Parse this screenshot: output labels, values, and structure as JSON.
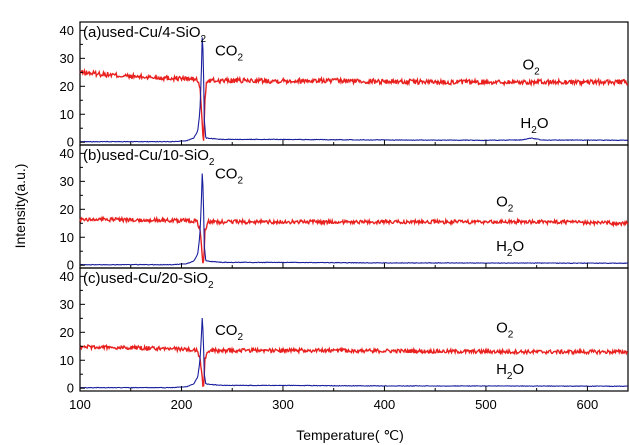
{
  "chart_data": [
    {
      "type": "line",
      "panel_label": {
        "text": "(a)used-Cu/4-SiO",
        "sub": "2"
      },
      "species_labels": [
        {
          "text": "CO",
          "sub": "2",
          "x": 233,
          "y": 31
        },
        {
          "text": "O",
          "sub": "2",
          "x": 536,
          "y": 26
        },
        {
          "text": "H",
          "sub": "2",
          "tail": "O",
          "x": 534,
          "y": 5
        }
      ],
      "xlim": [
        100,
        640
      ],
      "ylim": [
        -1,
        43
      ],
      "yticks": [
        0,
        10,
        20,
        30,
        40
      ],
      "series": [
        {
          "color": "#e8211f",
          "noise": 0.9,
          "points": [
            [
              100,
              25
            ],
            [
              150,
              23.5
            ],
            [
              200,
              22.8
            ],
            [
              215,
              22.5
            ],
            [
              218,
              20
            ],
            [
              220,
              10
            ],
            [
              221,
              2
            ],
            [
              222,
              1
            ],
            [
              223,
              15
            ],
            [
              225,
              22
            ],
            [
              260,
              22
            ],
            [
              350,
              22
            ],
            [
              450,
              21.5
            ],
            [
              550,
              21.5
            ],
            [
              640,
              21.5
            ]
          ]
        },
        {
          "color": "#1a1f9e",
          "noise": 0.1,
          "points": [
            [
              100,
              0.2
            ],
            [
              190,
              0.2
            ],
            [
              205,
              0.5
            ],
            [
              212,
              1.5
            ],
            [
              216,
              4
            ],
            [
              218,
              10
            ],
            [
              219.5,
              24
            ],
            [
              220.5,
              39
            ],
            [
              221.5,
              30
            ],
            [
              222.5,
              8
            ],
            [
              224,
              1.5
            ],
            [
              240,
              1
            ],
            [
              300,
              1
            ],
            [
              400,
              0.8
            ],
            [
              500,
              0.7
            ],
            [
              535,
              0.8
            ],
            [
              545,
              1.5
            ],
            [
              555,
              0.8
            ],
            [
              640,
              0.7
            ]
          ]
        }
      ]
    },
    {
      "type": "line",
      "panel_label": {
        "text": "(b)used-Cu/10-SiO",
        "sub": "2"
      },
      "species_labels": [
        {
          "text": "CO",
          "sub": "2",
          "x": 233,
          "y": 31
        },
        {
          "text": "O",
          "sub": "2",
          "x": 510,
          "y": 21
        },
        {
          "text": "H",
          "sub": "2",
          "tail": "O",
          "x": 510,
          "y": 5
        }
      ],
      "xlim": [
        100,
        640
      ],
      "ylim": [
        -1,
        43
      ],
      "yticks": [
        0,
        10,
        20,
        30,
        40
      ],
      "series": [
        {
          "color": "#e8211f",
          "noise": 0.7,
          "points": [
            [
              100,
              16.5
            ],
            [
              150,
              16.2
            ],
            [
              200,
              16
            ],
            [
              215,
              15.8
            ],
            [
              218,
              13
            ],
            [
              220,
              6
            ],
            [
              221,
              1
            ],
            [
              222,
              1
            ],
            [
              223,
              12
            ],
            [
              226,
              15.5
            ],
            [
              260,
              15.5
            ],
            [
              350,
              15.5
            ],
            [
              450,
              15.5
            ],
            [
              550,
              15.5
            ],
            [
              640,
              15
            ]
          ]
        },
        {
          "color": "#1a1f9e",
          "noise": 0.1,
          "points": [
            [
              100,
              0.2
            ],
            [
              190,
              0.2
            ],
            [
              205,
              0.5
            ],
            [
              212,
              1.5
            ],
            [
              216,
              4
            ],
            [
              218,
              10
            ],
            [
              219.5,
              22
            ],
            [
              220.5,
              34
            ],
            [
              221.5,
              25
            ],
            [
              222.5,
              7
            ],
            [
              224,
              1.5
            ],
            [
              240,
              1
            ],
            [
              300,
              1
            ],
            [
              400,
              0.8
            ],
            [
              500,
              0.8
            ],
            [
              640,
              0.7
            ]
          ]
        }
      ]
    },
    {
      "type": "line",
      "panel_label": {
        "text": "(c)used-Cu/20-SiO",
        "sub": "2"
      },
      "species_labels": [
        {
          "text": "CO",
          "sub": "2",
          "x": 233,
          "y": 19
        },
        {
          "text": "O",
          "sub": "2",
          "x": 510,
          "y": 20
        },
        {
          "text": "H",
          "sub": "2",
          "tail": "O",
          "x": 510,
          "y": 5
        }
      ],
      "xlim": [
        100,
        640
      ],
      "ylim": [
        -1,
        43
      ],
      "yticks": [
        0,
        10,
        20,
        30,
        40
      ],
      "series": [
        {
          "color": "#e8211f",
          "noise": 0.7,
          "points": [
            [
              100,
              14.8
            ],
            [
              150,
              14.5
            ],
            [
              200,
              14
            ],
            [
              215,
              13.5
            ],
            [
              218,
              11
            ],
            [
              220,
              5
            ],
            [
              221,
              1
            ],
            [
              222,
              1
            ],
            [
              223,
              10
            ],
            [
              226,
              13.5
            ],
            [
              260,
              13.5
            ],
            [
              350,
              13.5
            ],
            [
              450,
              13.2
            ],
            [
              550,
              13
            ],
            [
              640,
              13
            ]
          ]
        },
        {
          "color": "#1a1f9e",
          "noise": 0.1,
          "points": [
            [
              100,
              0.2
            ],
            [
              190,
              0.2
            ],
            [
              205,
              0.5
            ],
            [
              212,
              1.5
            ],
            [
              216,
              4
            ],
            [
              218,
              9
            ],
            [
              219.5,
              18
            ],
            [
              220.5,
              26
            ],
            [
              221.5,
              18
            ],
            [
              222.5,
              5
            ],
            [
              224,
              1.5
            ],
            [
              240,
              1
            ],
            [
              300,
              1
            ],
            [
              400,
              0.8
            ],
            [
              500,
              0.8
            ],
            [
              640,
              0.7
            ]
          ]
        }
      ]
    }
  ],
  "xticks": [
    100,
    200,
    300,
    400,
    500,
    600
  ],
  "xlabel": "Temperature(     ℃)",
  "ylabel": "Intensity(a.u.)"
}
